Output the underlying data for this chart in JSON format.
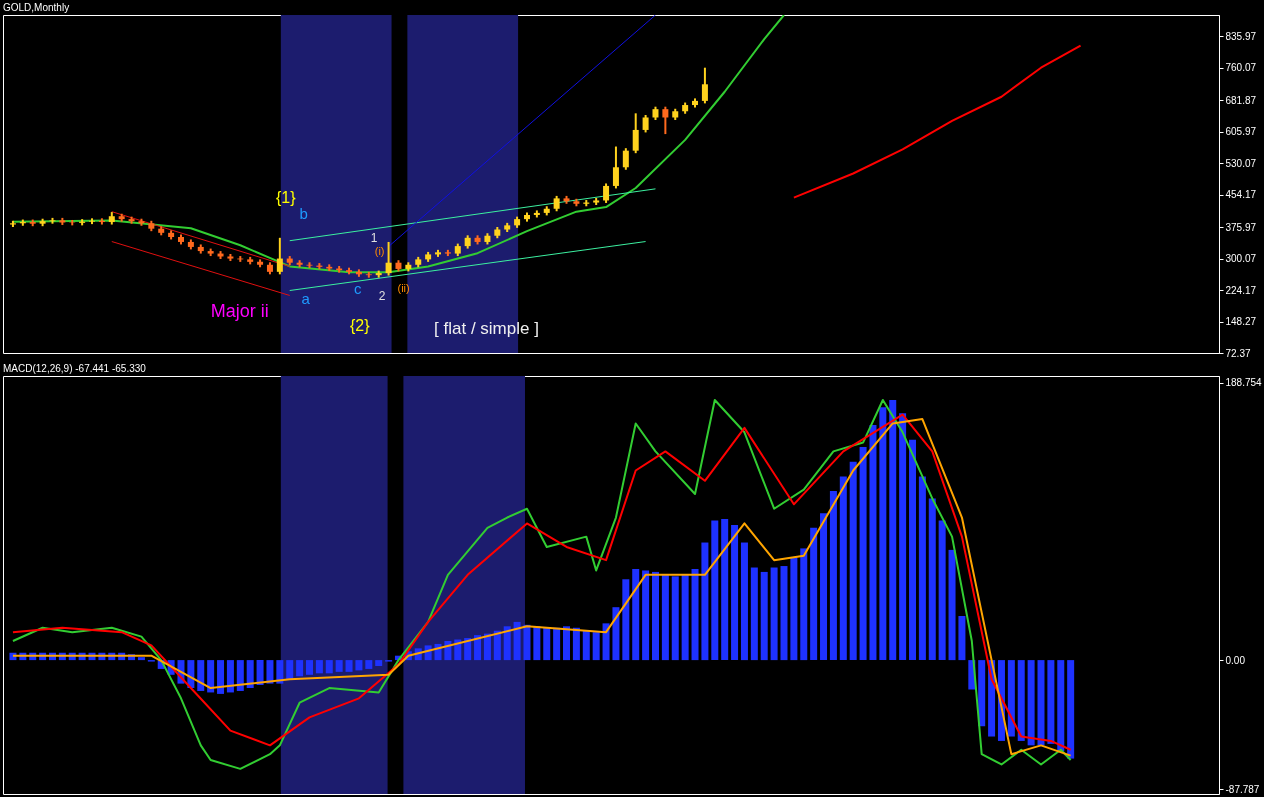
{
  "chart_data": [
    {
      "type": "candlestick",
      "title": "GOLD,Monthly",
      "ylim": [
        72.37,
        887
      ],
      "tick_labels": "y",
      "grid": false,
      "categories": [
        null,
        null,
        null,
        null,
        null,
        null,
        null,
        null,
        null,
        null,
        null,
        null,
        null,
        null,
        null,
        null,
        null,
        null,
        null,
        null,
        null,
        null,
        null,
        null,
        null,
        null,
        null,
        null,
        null,
        null,
        null,
        null,
        null,
        null,
        null,
        null,
        null,
        null,
        null,
        null,
        null,
        null,
        null,
        null,
        null,
        null,
        null,
        null,
        null,
        null,
        null,
        null,
        null,
        null,
        null,
        null,
        null,
        null,
        null,
        null,
        null,
        null,
        null,
        null,
        null,
        null,
        null,
        null,
        null,
        null,
        null,
        null,
        null,
        null,
        null,
        null,
        null,
        null,
        null,
        null,
        null,
        null,
        null,
        null,
        null,
        null,
        null,
        null,
        null,
        null,
        null,
        null,
        null,
        null,
        null,
        null,
        null,
        null,
        null,
        null,
        null,
        null,
        null,
        null,
        null,
        null,
        null,
        null,
        null,
        null,
        null,
        null,
        null,
        null,
        null,
        null,
        null,
        null,
        null,
        null,
        null,
        null
      ],
      "yticks": [
        {
          "value": 835.97,
          "label": "835.97"
        },
        {
          "value": 760.07,
          "label": "760.07"
        },
        {
          "value": 681.87,
          "label": "681.87"
        },
        {
          "value": 605.97,
          "label": "605.97"
        },
        {
          "value": 530.07,
          "label": "530.07"
        },
        {
          "value": 454.17,
          "label": "454.17"
        },
        {
          "value": 375.97,
          "label": "375.97"
        },
        {
          "value": 300.07,
          "label": "300.07"
        },
        {
          "value": 224.17,
          "label": "224.17"
        },
        {
          "value": 148.27,
          "label": "148.27"
        },
        {
          "value": 72.37,
          "label": "72.37"
        }
      ],
      "ohlc": [
        [
          382,
          391,
          376,
          385
        ],
        [
          385,
          394,
          379,
          388
        ],
        [
          388,
          394,
          378,
          384
        ],
        [
          384,
          396,
          378,
          390
        ],
        [
          390,
          398,
          384,
          392
        ],
        [
          392,
          398,
          381,
          387
        ],
        [
          387,
          393,
          380,
          386
        ],
        [
          386,
          395,
          380,
          389
        ],
        [
          389,
          397,
          383,
          391
        ],
        [
          391,
          397,
          382,
          388
        ],
        [
          388,
          412,
          382,
          402
        ],
        [
          402,
          408,
          389,
          395
        ],
        [
          395,
          401,
          384,
          390
        ],
        [
          390,
          396,
          379,
          385
        ],
        [
          385,
          391,
          366,
          372
        ],
        [
          372,
          378,
          356,
          362
        ],
        [
          362,
          368,
          346,
          352
        ],
        [
          352,
          358,
          334,
          340
        ],
        [
          340,
          346,
          322,
          328
        ],
        [
          328,
          334,
          312,
          318
        ],
        [
          318,
          324,
          306,
          312
        ],
        [
          312,
          318,
          299,
          305
        ],
        [
          305,
          311,
          294,
          300
        ],
        [
          300,
          306,
          292,
          298
        ],
        [
          298,
          304,
          286,
          292
        ],
        [
          292,
          298,
          279,
          285
        ],
        [
          285,
          291,
          262,
          268
        ],
        [
          268,
          350,
          262,
          300
        ],
        [
          300,
          306,
          284,
          290
        ],
        [
          290,
          296,
          279,
          285
        ],
        [
          285,
          291,
          277,
          283
        ],
        [
          283,
          289,
          274,
          280
        ],
        [
          280,
          286,
          270,
          276
        ],
        [
          276,
          282,
          266,
          272
        ],
        [
          272,
          278,
          262,
          268
        ],
        [
          268,
          274,
          256,
          262
        ],
        [
          262,
          268,
          254,
          260
        ],
        [
          260,
          271,
          254,
          265
        ],
        [
          265,
          340,
          259,
          290
        ],
        [
          290,
          296,
          269,
          275
        ],
        [
          275,
          291,
          269,
          285
        ],
        [
          285,
          304,
          279,
          298
        ],
        [
          298,
          316,
          292,
          310
        ],
        [
          310,
          321,
          304,
          315
        ],
        [
          315,
          321,
          306,
          312
        ],
        [
          312,
          336,
          306,
          330
        ],
        [
          330,
          356,
          324,
          350
        ],
        [
          350,
          356,
          334,
          340
        ],
        [
          340,
          361,
          334,
          355
        ],
        [
          355,
          376,
          349,
          370
        ],
        [
          370,
          386,
          364,
          380
        ],
        [
          380,
          401,
          374,
          395
        ],
        [
          395,
          411,
          389,
          405
        ],
        [
          405,
          416,
          399,
          410
        ],
        [
          410,
          426,
          404,
          420
        ],
        [
          420,
          451,
          414,
          445
        ],
        [
          445,
          451,
          432,
          438
        ],
        [
          438,
          444,
          426,
          432
        ],
        [
          432,
          441,
          426,
          435
        ],
        [
          435,
          446,
          429,
          440
        ],
        [
          440,
          481,
          434,
          475
        ],
        [
          475,
          570,
          469,
          520
        ],
        [
          520,
          566,
          514,
          560
        ],
        [
          560,
          650,
          554,
          610
        ],
        [
          610,
          646,
          604,
          640
        ],
        [
          640,
          666,
          634,
          660
        ],
        [
          660,
          666,
          600,
          640
        ],
        [
          640,
          661,
          634,
          655
        ],
        [
          655,
          676,
          649,
          670
        ],
        [
          670,
          686,
          664,
          680
        ],
        [
          680,
          760,
          674,
          720
        ],
        null,
        null,
        null,
        null,
        null,
        null,
        null,
        null,
        null,
        null,
        null,
        null,
        null,
        null,
        null,
        null,
        null,
        null,
        null,
        null,
        null,
        null,
        null,
        null,
        null,
        null,
        null,
        null,
        null,
        null,
        null,
        null,
        null,
        null,
        null,
        null,
        null,
        null,
        null,
        null,
        null,
        null,
        null,
        null,
        null,
        null,
        null,
        null,
        null,
        null,
        null
      ],
      "series": [
        {
          "type": "line",
          "color": "#32cd32",
          "values": [
            389,
            null,
            null,
            null,
            null,
            null,
            null,
            null,
            null,
            null,
            392,
            null,
            null,
            null,
            null,
            null,
            null,
            null,
            373,
            null,
            null,
            null,
            null,
            332,
            null,
            null,
            null,
            null,
            281,
            null,
            null,
            null,
            null,
            null,
            267,
            null,
            null,
            null,
            267,
            null,
            null,
            null,
            281,
            null,
            null,
            null,
            null,
            313,
            null,
            null,
            null,
            null,
            366,
            null,
            null,
            null,
            null,
            413,
            null,
            null,
            424,
            null,
            null,
            470,
            null,
            null,
            null,
            null,
            586,
            null,
            null,
            null,
            702,
            null,
            null,
            null,
            829,
            null,
            887,
            null,
            null,
            null,
            null,
            null,
            null,
            null,
            null,
            null,
            null,
            null,
            null,
            null,
            null,
            null,
            null,
            null,
            null,
            null,
            null,
            null,
            null,
            null,
            null,
            null,
            null,
            null,
            null,
            null,
            null,
            null,
            null,
            null,
            null,
            null,
            null,
            null,
            null,
            null,
            null,
            null,
            null,
            null
          ]
        },
        {
          "type": "line",
          "color": "#ff0000",
          "values": [
            null,
            null,
            null,
            null,
            null,
            null,
            null,
            null,
            null,
            null,
            null,
            null,
            null,
            null,
            null,
            null,
            null,
            null,
            null,
            null,
            null,
            null,
            null,
            null,
            null,
            null,
            null,
            null,
            null,
            null,
            null,
            null,
            null,
            null,
            null,
            null,
            null,
            null,
            null,
            null,
            null,
            null,
            null,
            null,
            null,
            null,
            null,
            null,
            null,
            null,
            null,
            null,
            null,
            null,
            null,
            null,
            null,
            null,
            null,
            null,
            null,
            null,
            null,
            null,
            null,
            null,
            null,
            null,
            null,
            null,
            null,
            null,
            null,
            null,
            null,
            null,
            null,
            null,
            null,
            447,
            null,
            null,
            null,
            null,
            null,
            505,
            null,
            null,
            null,
            null,
            563,
            null,
            null,
            null,
            null,
            632,
            null,
            null,
            null,
            null,
            690,
            null,
            null,
            null,
            760,
            null,
            null,
            null,
            813,
            null,
            null,
            null,
            null,
            null,
            null,
            null,
            null,
            null,
            null,
            null,
            null,
            null
          ]
        },
        {
          "type": "line",
          "color": "#3cf0a0",
          "values": [
            null,
            null,
            null,
            null,
            null,
            null,
            null,
            null,
            null,
            null,
            null,
            null,
            null,
            null,
            null,
            null,
            null,
            null,
            null,
            null,
            null,
            null,
            null,
            null,
            null,
            null,
            null,
            null,
            343,
            null,
            null,
            null,
            null,
            null,
            null,
            null,
            null,
            null,
            null,
            null,
            null,
            null,
            null,
            null,
            null,
            null,
            null,
            null,
            null,
            null,
            null,
            null,
            null,
            null,
            null,
            null,
            null,
            null,
            null,
            null,
            null,
            null,
            null,
            null,
            null,
            468,
            null,
            null,
            null,
            null,
            null,
            null,
            null,
            null,
            null,
            null,
            null,
            null,
            null,
            null,
            null,
            null,
            null,
            null,
            null,
            null,
            null,
            null,
            null,
            null,
            null,
            null,
            null,
            null,
            null,
            null,
            null,
            null,
            null,
            null,
            null,
            null,
            null,
            null,
            null,
            null,
            null,
            null,
            null,
            null,
            null,
            null,
            null,
            null,
            null,
            null,
            null,
            null,
            null,
            null,
            null,
            null
          ]
        },
        {
          "type": "line",
          "color": "#3cf0a0",
          "values": [
            null,
            null,
            null,
            null,
            null,
            null,
            null,
            null,
            null,
            null,
            null,
            null,
            null,
            null,
            null,
            null,
            null,
            null,
            null,
            null,
            null,
            null,
            null,
            null,
            null,
            null,
            null,
            null,
            223,
            null,
            null,
            null,
            null,
            null,
            null,
            null,
            null,
            null,
            null,
            null,
            null,
            null,
            null,
            null,
            null,
            null,
            null,
            null,
            null,
            null,
            null,
            null,
            null,
            null,
            null,
            null,
            null,
            null,
            null,
            null,
            null,
            null,
            null,
            null,
            341,
            null,
            null,
            null,
            null,
            null,
            null,
            null,
            null,
            null,
            null,
            null,
            null,
            null,
            null,
            null,
            null,
            null,
            null,
            null,
            null,
            null,
            null,
            null,
            null,
            null,
            null,
            null,
            null,
            null,
            null,
            null,
            null,
            null,
            null,
            null,
            null,
            null,
            null,
            null,
            null,
            null,
            null,
            null,
            null,
            null,
            null,
            null,
            null,
            null,
            null,
            null,
            null,
            null,
            null,
            null,
            null,
            null
          ]
        },
        {
          "type": "line",
          "color": "#e01010",
          "values": [
            null,
            null,
            null,
            null,
            null,
            null,
            null,
            null,
            null,
            null,
            413,
            null,
            null,
            null,
            null,
            null,
            null,
            null,
            null,
            null,
            null,
            null,
            null,
            null,
            null,
            null,
            null,
            null,
            281,
            null,
            null,
            null,
            null,
            null,
            null,
            null,
            null,
            null,
            null,
            null,
            null,
            null,
            null,
            null,
            null,
            null,
            null,
            null,
            null,
            null,
            null,
            null,
            null,
            null,
            null,
            null,
            null,
            null,
            null,
            null,
            null,
            null,
            null,
            null,
            null,
            null,
            null,
            null,
            null,
            null,
            null,
            null,
            null,
            null,
            null,
            null,
            null,
            null,
            null,
            null,
            null,
            null,
            null,
            null,
            null,
            null,
            null,
            null,
            null,
            null,
            null,
            null,
            null,
            null,
            null,
            null,
            null,
            null,
            null,
            null,
            null,
            null,
            null,
            null,
            null,
            null,
            null,
            null,
            null,
            null,
            null,
            null,
            null,
            null,
            null,
            null,
            null,
            null,
            null,
            null,
            null,
            null
          ]
        },
        {
          "type": "line",
          "color": "#e01010",
          "values": [
            null,
            null,
            null,
            null,
            null,
            null,
            null,
            null,
            null,
            null,
            341,
            null,
            null,
            null,
            null,
            null,
            null,
            null,
            null,
            null,
            null,
            null,
            null,
            null,
            null,
            null,
            null,
            null,
            211,
            null,
            null,
            null,
            null,
            null,
            null,
            null,
            null,
            null,
            null,
            null,
            null,
            null,
            null,
            null,
            null,
            null,
            null,
            null,
            null,
            null,
            null,
            null,
            null,
            null,
            null,
            null,
            null,
            null,
            null,
            null,
            null,
            null,
            null,
            null,
            null,
            null,
            null,
            null,
            null,
            null,
            null,
            null,
            null,
            null,
            null,
            null,
            null,
            null,
            null,
            null,
            null,
            null,
            null,
            null,
            null,
            null,
            null,
            null,
            null,
            null,
            null,
            null,
            null,
            null,
            null,
            null,
            null,
            null,
            null,
            null,
            null,
            null,
            null,
            null,
            null,
            null,
            null,
            null,
            null,
            null,
            null,
            null,
            null,
            null,
            null,
            null,
            null,
            null,
            null,
            null,
            null,
            null
          ]
        },
        {
          "type": "line",
          "color": "#1010e0",
          "values": [
            null,
            null,
            null,
            null,
            null,
            null,
            null,
            null,
            null,
            null,
            null,
            null,
            null,
            null,
            null,
            null,
            null,
            null,
            null,
            null,
            null,
            null,
            null,
            null,
            null,
            null,
            null,
            null,
            null,
            null,
            null,
            null,
            null,
            null,
            null,
            null,
            null,
            null,
            329,
            null,
            null,
            null,
            null,
            null,
            null,
            null,
            null,
            null,
            null,
            null,
            null,
            null,
            null,
            null,
            null,
            null,
            null,
            null,
            null,
            null,
            null,
            null,
            null,
            null,
            null,
            887,
            null,
            null,
            null,
            null,
            null,
            null,
            null,
            null,
            null,
            null,
            null,
            null,
            null,
            null,
            null,
            null,
            null,
            null,
            null,
            null,
            null,
            null,
            null,
            null,
            null,
            null,
            null,
            null,
            null,
            null,
            null,
            null,
            null,
            null,
            null,
            null,
            null,
            null,
            null,
            null,
            null,
            null,
            null,
            null,
            null,
            null,
            null,
            null,
            null,
            null,
            null,
            null,
            null,
            null,
            null,
            null
          ]
        }
      ],
      "annotations": [
        "{1}",
        "b",
        "1",
        "(i)",
        "a",
        "c",
        "2",
        "(ii)",
        "Major ii",
        "{2}",
        "[ flat / simple ]"
      ]
    },
    {
      "type": "bar",
      "title": "MACD(12,26,9) -67.441 -65.330",
      "ylim": [
        -91.1,
        193.3
      ],
      "tick_labels": "y",
      "grid": false,
      "categories": [
        null,
        null,
        null,
        null,
        null,
        null,
        null,
        null,
        null,
        null,
        null,
        null,
        null,
        null,
        null,
        null,
        null,
        null,
        null,
        null,
        null,
        null,
        null,
        null,
        null,
        null,
        null,
        null,
        null,
        null,
        null,
        null,
        null,
        null,
        null,
        null,
        null,
        null,
        null,
        null,
        null,
        null,
        null,
        null,
        null,
        null,
        null,
        null,
        null,
        null,
        null,
        null,
        null,
        null,
        null,
        null,
        null,
        null,
        null,
        null,
        null,
        null,
        null,
        null,
        null,
        null,
        null,
        null,
        null,
        null,
        null,
        null,
        null,
        null,
        null,
        null,
        null,
        null,
        null,
        null,
        null,
        null,
        null,
        null,
        null,
        null,
        null,
        null,
        null,
        null,
        null,
        null,
        null,
        null,
        null,
        null,
        null,
        null,
        null,
        null,
        null,
        null,
        null,
        null,
        null,
        null,
        null,
        null,
        null,
        null,
        null,
        null,
        null,
        null,
        null,
        null,
        null,
        null,
        null,
        null,
        null,
        null
      ],
      "yticks": [
        {
          "value": 188.754,
          "label": "188.754"
        },
        {
          "value": 0,
          "label": "0.00"
        },
        {
          "value": -87.787,
          "label": "-87.787"
        }
      ],
      "series": [
        {
          "type": "bar",
          "color": "#1e32ff",
          "values": [
            5,
            5,
            5,
            5,
            5,
            5,
            5,
            5,
            5,
            5,
            5,
            5,
            4,
            2,
            -1,
            -6,
            -10,
            -16,
            -19,
            -21,
            -22,
            -23,
            -22,
            -21,
            -19,
            -17,
            -16,
            -16,
            -13,
            -11,
            -10,
            -9,
            -9,
            -8,
            -8,
            -7,
            -6,
            -4,
            -1,
            3,
            6,
            8,
            10,
            11,
            13,
            14,
            15,
            17,
            18,
            20,
            23,
            26,
            24,
            23,
            22,
            22,
            23,
            22,
            20,
            19,
            25,
            36,
            55,
            62,
            61,
            60,
            58,
            57,
            58,
            62,
            80,
            95,
            96,
            92,
            80,
            63,
            60,
            63,
            64,
            70,
            76,
            90,
            100,
            115,
            125,
            135,
            145,
            160,
            172,
            177,
            168,
            150,
            125,
            110,
            95,
            75,
            30,
            -20,
            -45,
            -52,
            -55,
            -52,
            -55,
            -58,
            -58,
            -57,
            -62,
            -67,
            null,
            null,
            null,
            null,
            null,
            null,
            null,
            null,
            null,
            null,
            null,
            null,
            null,
            null
          ]
        },
        {
          "type": "line",
          "color": "#32cd32",
          "values": [
            13,
            null,
            null,
            22,
            null,
            null,
            19,
            null,
            null,
            null,
            22,
            null,
            null,
            16,
            null,
            0,
            null,
            -26,
            null,
            -58,
            -68,
            null,
            null,
            -74,
            null,
            null,
            -64,
            -58,
            null,
            -29,
            null,
            null,
            -19,
            null,
            null,
            null,
            null,
            -22,
            null,
            0,
            null,
            null,
            26,
            null,
            58,
            null,
            null,
            null,
            90,
            null,
            97,
            null,
            103,
            null,
            77,
            null,
            null,
            null,
            84,
            61,
            null,
            97,
            null,
            161,
            null,
            142,
            null,
            null,
            null,
            113,
            null,
            177,
            null,
            null,
            155,
            null,
            null,
            103,
            null,
            null,
            116,
            null,
            null,
            142,
            null,
            null,
            148,
            null,
            177,
            null,
            155,
            null,
            null,
            110,
            null,
            84,
            null,
            13,
            -64,
            null,
            -71,
            null,
            -61,
            null,
            -71,
            null,
            -61,
            -68,
            null,
            null,
            null,
            null,
            null,
            null,
            null,
            null,
            null,
            null,
            null,
            null,
            null,
            null
          ]
        },
        {
          "type": "line",
          "color": "#ff0000",
          "values": [
            19,
            null,
            null,
            null,
            null,
            22,
            null,
            null,
            null,
            null,
            null,
            19,
            null,
            null,
            10,
            null,
            null,
            null,
            -19,
            null,
            null,
            null,
            -48,
            null,
            null,
            null,
            -58,
            null,
            null,
            null,
            -39,
            null,
            null,
            null,
            null,
            -26,
            null,
            null,
            null,
            -3,
            null,
            null,
            26,
            null,
            null,
            null,
            58,
            null,
            null,
            null,
            null,
            null,
            93,
            null,
            null,
            null,
            77,
            null,
            null,
            null,
            68,
            null,
            null,
            129,
            null,
            null,
            142,
            null,
            null,
            null,
            122,
            null,
            null,
            null,
            158,
            null,
            null,
            null,
            null,
            106,
            null,
            null,
            null,
            null,
            142,
            null,
            null,
            null,
            null,
            null,
            167,
            null,
            null,
            142,
            null,
            null,
            84,
            null,
            null,
            -13,
            null,
            null,
            -52,
            null,
            null,
            -55,
            null,
            -61,
            null,
            null,
            null,
            null,
            null,
            null,
            null,
            null,
            null,
            null,
            null,
            null,
            null,
            null
          ]
        },
        {
          "type": "line",
          "color": "#ffa500",
          "values": [
            3,
            null,
            null,
            null,
            null,
            null,
            null,
            null,
            null,
            null,
            null,
            null,
            null,
            null,
            3,
            null,
            null,
            null,
            null,
            null,
            -19,
            null,
            null,
            null,
            null,
            null,
            null,
            null,
            -13,
            null,
            null,
            null,
            null,
            null,
            null,
            null,
            null,
            null,
            -10,
            null,
            3,
            null,
            null,
            null,
            null,
            null,
            null,
            null,
            null,
            null,
            null,
            null,
            23,
            null,
            null,
            null,
            null,
            null,
            null,
            null,
            19,
            null,
            null,
            null,
            58,
            null,
            null,
            null,
            null,
            null,
            58,
            null,
            null,
            null,
            93,
            null,
            null,
            68,
            null,
            null,
            71,
            null,
            null,
            null,
            null,
            129,
            null,
            null,
            null,
            161,
            null,
            null,
            164,
            null,
            null,
            null,
            97,
            null,
            null,
            0,
            null,
            -64,
            null,
            null,
            -58,
            null,
            null,
            -65,
            null,
            null,
            null,
            null,
            null,
            null,
            null,
            null,
            null,
            null,
            null,
            null,
            null,
            null
          ]
        }
      ]
    }
  ]
}
